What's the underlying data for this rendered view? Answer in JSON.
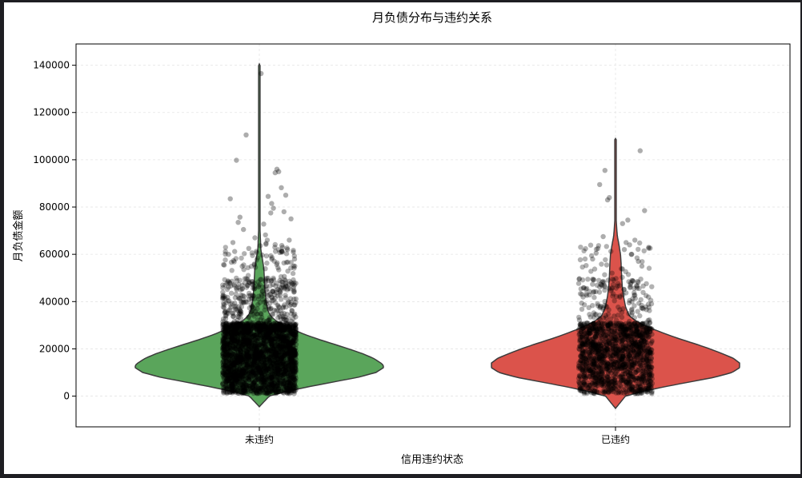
{
  "chart_data": {
    "type": "violin",
    "title": "月负债分布与违约关系",
    "xlabel": "信用违约状态",
    "ylabel": "月负债金额",
    "categories": [
      "未违约",
      "已违约"
    ],
    "ylim": [
      -13000,
      149000
    ],
    "yticks": [
      0,
      20000,
      40000,
      60000,
      80000,
      100000,
      120000,
      140000
    ],
    "grid": true,
    "series": [
      {
        "category": "未违约",
        "color": "#5aa55b",
        "min": -4500,
        "max": 140500,
        "mode": 13000,
        "profile": [
          [
            -4500,
            0.0
          ],
          [
            0,
            0.08
          ],
          [
            2000,
            0.22
          ],
          [
            4000,
            0.4
          ],
          [
            6000,
            0.6
          ],
          [
            8000,
            0.8
          ],
          [
            10000,
            0.94
          ],
          [
            12000,
            1.0
          ],
          [
            13000,
            1.0
          ],
          [
            14000,
            0.98
          ],
          [
            16000,
            0.92
          ],
          [
            18000,
            0.83
          ],
          [
            20000,
            0.72
          ],
          [
            22000,
            0.6
          ],
          [
            24000,
            0.48
          ],
          [
            26000,
            0.37
          ],
          [
            28000,
            0.28
          ],
          [
            30000,
            0.2
          ],
          [
            32000,
            0.13
          ],
          [
            34000,
            0.09
          ],
          [
            36000,
            0.07
          ],
          [
            40000,
            0.055
          ],
          [
            45000,
            0.045
          ],
          [
            50000,
            0.04
          ],
          [
            54000,
            0.036
          ],
          [
            58000,
            0.025
          ],
          [
            62000,
            0.012
          ],
          [
            70000,
            0.006
          ],
          [
            100000,
            0.004
          ],
          [
            140500,
            0.0
          ]
        ],
        "outliers": [
          [
            0.02,
            136500
          ],
          [
            -0.15,
            110500
          ],
          [
            -0.26,
            99800
          ],
          [
            -0.33,
            83500
          ],
          [
            -0.22,
            75700
          ],
          [
            -0.24,
            73500
          ],
          [
            0.05,
            72800
          ],
          [
            0.07,
            68200
          ],
          [
            0.09,
            66000
          ],
          [
            0.25,
            88200
          ],
          [
            0.2,
            96000
          ],
          [
            0.18,
            94500
          ],
          [
            0.22,
            95000
          ],
          [
            0.3,
            85000
          ],
          [
            0.1,
            84500
          ],
          [
            0.14,
            81500
          ],
          [
            0.16,
            79500
          ],
          [
            0.13,
            77500
          ],
          [
            0.28,
            78000
          ],
          [
            0.36,
            75000
          ],
          [
            0.34,
            66000
          ],
          [
            0.32,
            62000
          ],
          [
            -0.18,
            70500
          ],
          [
            -0.3,
            65000
          ],
          [
            -0.12,
            62500
          ],
          [
            -0.28,
            61200
          ],
          [
            0.26,
            61000
          ],
          [
            -0.05,
            67000
          ],
          [
            0.4,
            58000
          ],
          [
            -0.35,
            60000
          ]
        ],
        "n_points": 3000
      },
      {
        "category": "已违约",
        "color": "#db534b",
        "min": -5200,
        "max": 109000,
        "mode": 13500,
        "profile": [
          [
            -5200,
            0.0
          ],
          [
            0,
            0.08
          ],
          [
            2000,
            0.22
          ],
          [
            4000,
            0.4
          ],
          [
            6000,
            0.6
          ],
          [
            8000,
            0.8
          ],
          [
            10000,
            0.94
          ],
          [
            12000,
            1.0
          ],
          [
            14000,
            1.0
          ],
          [
            16000,
            0.95
          ],
          [
            18000,
            0.86
          ],
          [
            20000,
            0.76
          ],
          [
            22000,
            0.65
          ],
          [
            24000,
            0.53
          ],
          [
            26000,
            0.42
          ],
          [
            28000,
            0.32
          ],
          [
            30000,
            0.23
          ],
          [
            32000,
            0.16
          ],
          [
            34000,
            0.11
          ],
          [
            38000,
            0.08
          ],
          [
            42000,
            0.065
          ],
          [
            46000,
            0.055
          ],
          [
            50000,
            0.05
          ],
          [
            56000,
            0.045
          ],
          [
            60000,
            0.04
          ],
          [
            64000,
            0.028
          ],
          [
            68000,
            0.014
          ],
          [
            74000,
            0.006
          ],
          [
            90000,
            0.004
          ],
          [
            109000,
            0.0
          ]
        ],
        "outliers": [
          [
            -0.12,
            95500
          ],
          [
            -0.18,
            89500
          ],
          [
            -0.07,
            84000
          ],
          [
            -0.09,
            83000
          ],
          [
            0.28,
            103800
          ],
          [
            0.33,
            78500
          ],
          [
            0.14,
            74500
          ],
          [
            0.08,
            73000
          ],
          [
            0.22,
            66000
          ],
          [
            0.12,
            65000
          ],
          [
            -0.2,
            62500
          ],
          [
            -0.14,
            67500
          ],
          [
            0.16,
            64000
          ],
          [
            0.26,
            57000
          ],
          [
            -0.26,
            58000
          ],
          [
            0.3,
            55000
          ],
          [
            0.18,
            60000
          ],
          [
            -0.22,
            60500
          ],
          [
            0.1,
            62000
          ],
          [
            -0.1,
            55500
          ]
        ],
        "n_points": 1600
      }
    ]
  }
}
